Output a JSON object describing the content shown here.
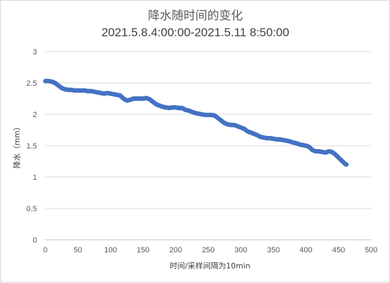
{
  "chart_data": {
    "type": "scatter",
    "title": "降水随时间的变化",
    "subtitle": "2021.5.8.4:00:00-2021.5.11 8:50:00",
    "xlabel": "时间/采样间隔为10min",
    "ylabel": "降水（mm）",
    "xlim": [
      0,
      500
    ],
    "ylim": [
      0,
      3
    ],
    "xticks": [
      "0",
      "50",
      "100",
      "150",
      "200",
      "250",
      "300",
      "350",
      "400",
      "450",
      "500"
    ],
    "yticks": [
      "0",
      "0.5",
      "1",
      "1.5",
      "2",
      "2.5",
      "3"
    ],
    "grid": "horizontal",
    "marker_color": "#4472c4",
    "series": [
      {
        "points": [
          [
            0,
            2.53
          ],
          [
            5,
            2.53
          ],
          [
            10,
            2.52
          ],
          [
            15,
            2.5
          ],
          [
            20,
            2.46
          ],
          [
            25,
            2.42
          ],
          [
            30,
            2.4
          ],
          [
            35,
            2.39
          ],
          [
            40,
            2.39
          ],
          [
            45,
            2.38
          ],
          [
            50,
            2.38
          ],
          [
            55,
            2.38
          ],
          [
            60,
            2.38
          ],
          [
            65,
            2.37
          ],
          [
            70,
            2.37
          ],
          [
            75,
            2.36
          ],
          [
            80,
            2.35
          ],
          [
            85,
            2.34
          ],
          [
            90,
            2.33
          ],
          [
            95,
            2.34
          ],
          [
            100,
            2.33
          ],
          [
            105,
            2.32
          ],
          [
            110,
            2.31
          ],
          [
            115,
            2.3
          ],
          [
            120,
            2.25
          ],
          [
            125,
            2.22
          ],
          [
            130,
            2.23
          ],
          [
            135,
            2.25
          ],
          [
            140,
            2.25
          ],
          [
            145,
            2.25
          ],
          [
            150,
            2.25
          ],
          [
            155,
            2.26
          ],
          [
            160,
            2.24
          ],
          [
            165,
            2.2
          ],
          [
            170,
            2.16
          ],
          [
            175,
            2.14
          ],
          [
            180,
            2.12
          ],
          [
            185,
            2.11
          ],
          [
            190,
            2.1
          ],
          [
            195,
            2.11
          ],
          [
            200,
            2.11
          ],
          [
            205,
            2.1
          ],
          [
            210,
            2.1
          ],
          [
            215,
            2.07
          ],
          [
            220,
            2.06
          ],
          [
            225,
            2.04
          ],
          [
            230,
            2.02
          ],
          [
            235,
            2.01
          ],
          [
            240,
            2.0
          ],
          [
            245,
            1.99
          ],
          [
            250,
            1.99
          ],
          [
            255,
            1.99
          ],
          [
            260,
            1.98
          ],
          [
            265,
            1.94
          ],
          [
            270,
            1.9
          ],
          [
            275,
            1.86
          ],
          [
            280,
            1.84
          ],
          [
            285,
            1.83
          ],
          [
            290,
            1.83
          ],
          [
            295,
            1.81
          ],
          [
            300,
            1.79
          ],
          [
            305,
            1.77
          ],
          [
            310,
            1.73
          ],
          [
            315,
            1.71
          ],
          [
            320,
            1.69
          ],
          [
            325,
            1.67
          ],
          [
            330,
            1.64
          ],
          [
            335,
            1.63
          ],
          [
            340,
            1.62
          ],
          [
            345,
            1.62
          ],
          [
            350,
            1.61
          ],
          [
            355,
            1.6
          ],
          [
            360,
            1.6
          ],
          [
            365,
            1.59
          ],
          [
            370,
            1.58
          ],
          [
            375,
            1.57
          ],
          [
            380,
            1.55
          ],
          [
            385,
            1.54
          ],
          [
            390,
            1.52
          ],
          [
            395,
            1.51
          ],
          [
            400,
            1.5
          ],
          [
            405,
            1.48
          ],
          [
            410,
            1.43
          ],
          [
            415,
            1.41
          ],
          [
            420,
            1.41
          ],
          [
            425,
            1.4
          ],
          [
            430,
            1.39
          ],
          [
            435,
            1.41
          ],
          [
            440,
            1.4
          ],
          [
            445,
            1.36
          ],
          [
            450,
            1.31
          ],
          [
            455,
            1.26
          ],
          [
            460,
            1.21
          ],
          [
            462,
            1.2
          ]
        ]
      }
    ]
  }
}
